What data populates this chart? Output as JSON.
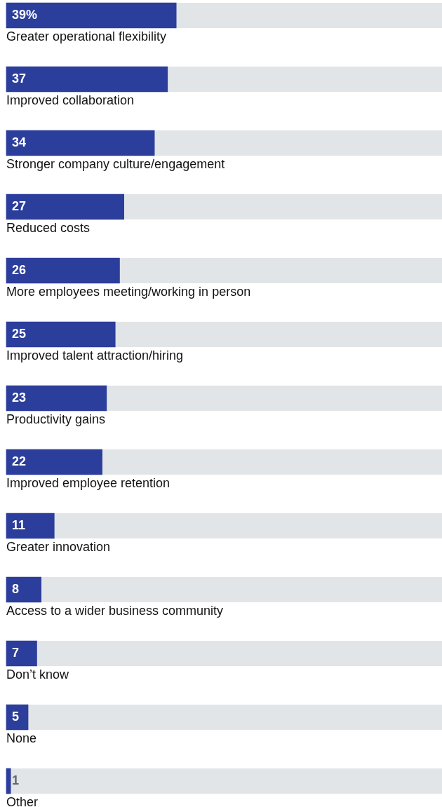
{
  "chart_data": {
    "type": "bar",
    "orientation": "horizontal",
    "categories": [
      "Greater operational flexibility",
      "Improved collaboration",
      "Stronger company culture/engagement",
      "Reduced costs",
      "More employees meeting/working in person",
      "Improved talent attraction/hiring",
      "Productivity gains",
      "Improved employee retention",
      "Greater innovation",
      "Access to a wider business community",
      "Don’t know",
      "None",
      "Other"
    ],
    "values": [
      39,
      37,
      34,
      27,
      26,
      25,
      23,
      22,
      11,
      8,
      7,
      5,
      1
    ],
    "value_labels": [
      "39%",
      "37",
      "34",
      "27",
      "26",
      "25",
      "23",
      "22",
      "11",
      "8",
      "7",
      "5",
      "1"
    ],
    "color": "#2c3e9c",
    "xlim": [
      0,
      100
    ],
    "tick_labels": "y",
    "legend": false
  }
}
